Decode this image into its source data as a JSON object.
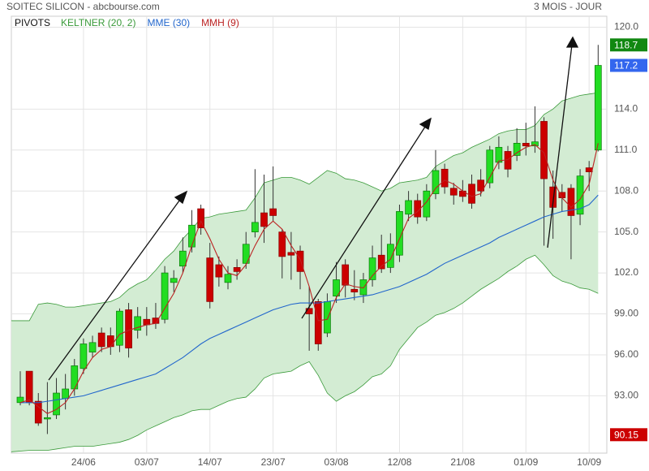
{
  "chart_data": {
    "type": "candlestick",
    "title": "SOITEC SILICON - abcbourse.com",
    "subtitle": "3 MOIS - JOUR",
    "pivots_label": "PIVOTS",
    "up_color": "#22dd22",
    "down_color": "#cc0000",
    "categories": [
      null,
      null,
      null,
      null,
      null,
      null,
      null,
      "24/06",
      null,
      null,
      null,
      null,
      null,
      null,
      "03/07",
      null,
      null,
      null,
      null,
      null,
      null,
      "14/07",
      null,
      null,
      null,
      null,
      null,
      null,
      "23/07",
      null,
      null,
      null,
      null,
      null,
      null,
      "03/08",
      null,
      null,
      null,
      null,
      null,
      null,
      "12/08",
      null,
      null,
      null,
      null,
      null,
      null,
      "21/08",
      null,
      null,
      null,
      null,
      null,
      null,
      "01/09",
      null,
      null,
      null,
      null,
      null,
      null,
      "10/09",
      null
    ],
    "open": [
      92.5,
      94.8,
      92.6,
      91.3,
      91.6,
      92.8,
      93.5,
      95.0,
      96.2,
      97.6,
      97.4,
      96.7,
      99.3,
      97.8,
      98.6,
      98.7,
      98.6,
      101.3,
      102.5,
      103.9,
      106.7,
      103.1,
      102.6,
      101.3,
      102.4,
      102.7,
      105.0,
      106.4,
      106.7,
      105.0,
      103.5,
      103.6,
      99.4,
      99.9,
      97.6,
      100.3,
      102.6,
      100.8,
      100.4,
      101.5,
      103.3,
      102.4,
      103.3,
      106.3,
      107.3,
      106.1,
      107.8,
      109.6,
      108.2,
      108.0,
      108.5,
      108.8,
      108.6,
      110.1,
      110.9,
      110.6,
      111.5,
      111.3,
      113.1,
      108.3,
      107.9,
      108.2,
      106.3,
      109.7,
      111.0
    ],
    "high": [
      94.8,
      94.8,
      93.2,
      94.0,
      94.3,
      94.6,
      95.7,
      97.2,
      97.4,
      98.0,
      98.0,
      99.4,
      99.8,
      99.5,
      99.5,
      99.8,
      102.5,
      102.2,
      104.6,
      106.6,
      107.0,
      104.2,
      103.2,
      102.5,
      103.0,
      105.0,
      109.6,
      109.2,
      109.8,
      105.2,
      105.0,
      104.0,
      101.0,
      100.1,
      100.5,
      102.8,
      103.0,
      102.2,
      102.0,
      104.0,
      104.8,
      104.9,
      107.0,
      108.0,
      107.8,
      108.5,
      111.0,
      110.0,
      108.6,
      108.8,
      109.2,
      109.6,
      111.3,
      112.0,
      111.3,
      112.6,
      113.0,
      114.2,
      113.4,
      109.5,
      108.5,
      108.5,
      109.6,
      110.2,
      118.7
    ],
    "low": [
      92.3,
      92.3,
      90.8,
      90.2,
      91.3,
      92.0,
      93.0,
      94.6,
      95.8,
      96.2,
      96.0,
      96.2,
      95.8,
      97.2,
      97.4,
      97.9,
      98.3,
      100.6,
      102.0,
      103.5,
      104.8,
      99.4,
      101.0,
      100.8,
      101.5,
      102.3,
      104.6,
      104.2,
      105.8,
      101.6,
      101.5,
      100.8,
      96.3,
      96.3,
      97.3,
      99.8,
      100.2,
      100.0,
      99.8,
      101.0,
      102.0,
      102.0,
      102.8,
      105.8,
      105.6,
      105.8,
      107.4,
      107.8,
      107.0,
      107.2,
      106.7,
      107.6,
      108.2,
      109.6,
      109.0,
      110.2,
      110.6,
      110.8,
      104.0,
      104.5,
      106.5,
      103.0,
      105.5,
      108.0,
      110.9
    ],
    "close": [
      92.9,
      92.5,
      91.0,
      91.4,
      93.2,
      93.5,
      95.2,
      96.8,
      96.9,
      96.6,
      96.6,
      99.2,
      96.5,
      98.8,
      98.2,
      98.3,
      102.0,
      101.6,
      103.6,
      105.5,
      105.3,
      99.9,
      101.7,
      101.9,
      102.1,
      104.1,
      105.7,
      105.4,
      106.2,
      103.2,
      103.3,
      102.1,
      99.0,
      96.8,
      99.9,
      101.5,
      101.1,
      100.6,
      101.5,
      103.1,
      102.3,
      104.1,
      106.5,
      107.3,
      106.1,
      108.0,
      109.5,
      108.3,
      107.7,
      107.6,
      107.1,
      108.0,
      111.0,
      111.2,
      109.6,
      111.5,
      111.3,
      111.6,
      108.9,
      106.8,
      107.5,
      106.2,
      109.1,
      109.4,
      117.2
    ],
    "series": [
      {
        "name": "KELTNER (20, 2)",
        "color": "#3a9a3a",
        "fill": "#d3ecd3",
        "upper": [
          98.5,
          98.5,
          99.7,
          99.8,
          99.7,
          99.5,
          99.5,
          99.6,
          99.7,
          99.8,
          99.9,
          100.2,
          100.8,
          101.2,
          101.5,
          102.2,
          103.0,
          103.6,
          104.5,
          105.2,
          106.0,
          106.1,
          106.3,
          106.4,
          106.5,
          106.6,
          107.5,
          108.6,
          108.8,
          109.0,
          109.0,
          108.8,
          108.5,
          109.0,
          109.5,
          109.3,
          108.9,
          108.8,
          108.6,
          108.3,
          108.0,
          108.2,
          108.6,
          108.7,
          108.8,
          109.0,
          109.8,
          110.2,
          110.6,
          110.8,
          111.2,
          111.5,
          111.8,
          112.2,
          112.4,
          112.5,
          112.5,
          112.8,
          113.6,
          114.0,
          114.6,
          114.8,
          115.0,
          115.1,
          115.2
        ],
        "lower": [
          88.9,
          89.0,
          89.0,
          89.0,
          89.1,
          89.2,
          89.3,
          89.3,
          89.3,
          89.4,
          89.5,
          89.6,
          89.8,
          90.1,
          90.5,
          90.8,
          91.1,
          91.4,
          91.6,
          91.9,
          92.0,
          92.0,
          92.3,
          92.6,
          92.8,
          92.9,
          93.5,
          94.3,
          94.6,
          94.7,
          94.8,
          95.2,
          95.5,
          94.5,
          93.2,
          92.6,
          93.0,
          93.3,
          93.8,
          94.4,
          94.6,
          95.2,
          96.4,
          97.2,
          98.0,
          98.4,
          98.9,
          99.1,
          99.4,
          99.8,
          100.3,
          100.8,
          101.2,
          101.6,
          102.1,
          102.5,
          103.0,
          103.3,
          102.6,
          101.8,
          101.4,
          101.2,
          100.9,
          100.8,
          100.5
        ]
      },
      {
        "name": "MME (30)",
        "color": "#2266cc",
        "values": [
          92.5,
          92.5,
          92.5,
          92.6,
          92.7,
          92.8,
          92.9,
          93.0,
          93.2,
          93.4,
          93.6,
          93.8,
          94.0,
          94.2,
          94.4,
          94.6,
          95.0,
          95.4,
          95.8,
          96.3,
          96.8,
          97.2,
          97.5,
          97.8,
          98.1,
          98.4,
          98.7,
          99.0,
          99.3,
          99.5,
          99.7,
          99.8,
          99.8,
          99.8,
          99.9,
          100.0,
          100.1,
          100.2,
          100.3,
          100.4,
          100.6,
          100.8,
          101.0,
          101.3,
          101.6,
          101.9,
          102.3,
          102.7,
          103.0,
          103.3,
          103.6,
          103.9,
          104.2,
          104.6,
          104.9,
          105.2,
          105.5,
          105.8,
          106.1,
          106.3,
          106.5,
          106.6,
          106.7,
          107.0,
          107.7
        ]
      },
      {
        "name": "MMH (9)",
        "color": "#bb2222",
        "values": [
          92.5,
          92.7,
          92.2,
          91.7,
          92.0,
          92.5,
          93.5,
          94.8,
          95.8,
          96.4,
          96.6,
          97.5,
          97.8,
          98.0,
          98.2,
          98.3,
          99.4,
          100.5,
          102.0,
          104.0,
          105.8,
          104.5,
          103.0,
          102.0,
          101.8,
          102.6,
          104.0,
          105.2,
          105.8,
          105.2,
          104.0,
          103.0,
          101.0,
          98.5,
          98.6,
          100.2,
          101.2,
          101.0,
          100.9,
          101.8,
          102.5,
          103.0,
          104.5,
          106.0,
          106.5,
          107.2,
          108.2,
          108.8,
          108.5,
          108.0,
          107.6,
          107.8,
          109.0,
          110.2,
          110.3,
          110.8,
          111.2,
          111.4,
          110.8,
          108.8,
          107.5,
          106.8,
          107.4,
          108.5,
          111.5
        ]
      }
    ],
    "ylim": [
      88.8,
      120.8
    ],
    "yticks": [
      {
        "value": 93,
        "label": "93.00"
      },
      {
        "value": 96,
        "label": "96.00"
      },
      {
        "value": 99,
        "label": "99.00"
      },
      {
        "value": 102,
        "label": "102.0"
      },
      {
        "value": 105,
        "label": "105.0"
      },
      {
        "value": 108,
        "label": "108.0"
      },
      {
        "value": 111,
        "label": "111.0"
      },
      {
        "value": 114,
        "label": "114.0"
      },
      {
        "value": 120,
        "label": "120.0"
      }
    ],
    "grid": true,
    "price_tags": [
      {
        "value": 118.7,
        "color": "#118811"
      },
      {
        "value": 117.2,
        "color": "#3366ee"
      },
      {
        "value": 90.15,
        "color": "#cc0000"
      }
    ]
  }
}
